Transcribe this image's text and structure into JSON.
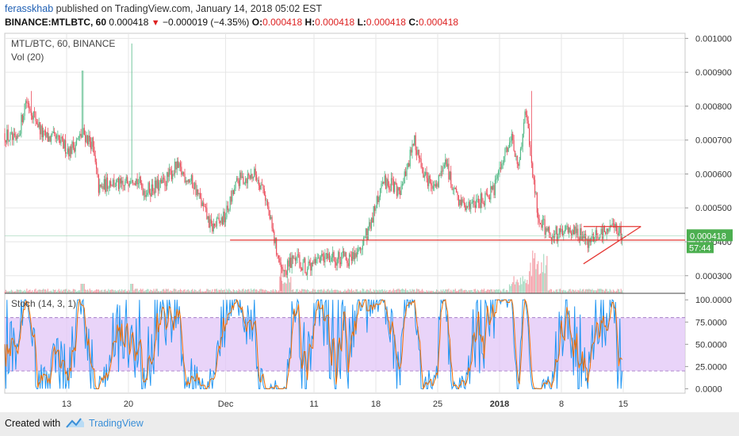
{
  "header": {
    "username": "ferasskhab",
    "published_text": "published on TradingView.com, January 14, 2018 05:02 EST",
    "symbol_line": "BINANCE:MTLBTC, 60",
    "last_price": "0.000418",
    "change_arrow": "▼",
    "change": "−0.000019 (−4.35%)",
    "o_label": "O:",
    "o_value": "0.000418",
    "h_label": "H:",
    "h_value": "0.000418",
    "l_label": "L:",
    "l_value": "0.000418",
    "c_label": "C:",
    "c_value": "0.000418"
  },
  "footer": {
    "created_with": "Created with",
    "brand": "TradingView",
    "logo_icon": "tradingview-cloud-icon"
  },
  "colors": {
    "up": "#53b987",
    "down": "#eb4d5c",
    "trendline": "#e53935",
    "stoch_k": "#2196f3",
    "stoch_d": "#ef6c00",
    "stoch_band": "#e1c6f7",
    "grid": "#e6e6e6"
  },
  "chart_data": {
    "type": "candlestick",
    "title": "MTL/BTC, 60, BINANCE",
    "volume_label": "Vol (20)",
    "y_ticks": [
      "0.001000",
      "0.000900",
      "0.000800",
      "0.000700",
      "0.000600",
      "0.000500",
      "0.000400",
      "0.000300"
    ],
    "ylim": [
      0.000248,
      0.001015
    ],
    "last_price_label": "0.000418",
    "countdown_label": "57:44",
    "x_ticks": [
      "13",
      "20",
      "Dec",
      "11",
      "18",
      "25",
      "2018",
      "8",
      "15"
    ],
    "x_tick_days": [
      13,
      20,
      31,
      41,
      48,
      55,
      62,
      69,
      76
    ],
    "xlim_days": [
      6,
      83
    ],
    "price_path": [
      {
        "day": 6.0,
        "price": 0.00072
      },
      {
        "day": 7.5,
        "price": 0.00069
      },
      {
        "day": 8.5,
        "price": 0.00082
      },
      {
        "day": 9.5,
        "price": 0.00077
      },
      {
        "day": 10.5,
        "price": 0.00071
      },
      {
        "day": 12.0,
        "price": 0.0007
      },
      {
        "day": 13.5,
        "price": 0.00067
      },
      {
        "day": 15.0,
        "price": 0.00072
      },
      {
        "day": 16.0,
        "price": 0.00069
      },
      {
        "day": 16.8,
        "price": 0.00055
      },
      {
        "day": 18.0,
        "price": 0.00058
      },
      {
        "day": 19.5,
        "price": 0.00056
      },
      {
        "day": 20.5,
        "price": 0.0006
      },
      {
        "day": 22.0,
        "price": 0.00055
      },
      {
        "day": 24.0,
        "price": 0.00057
      },
      {
        "day": 25.5,
        "price": 0.00062
      },
      {
        "day": 27.5,
        "price": 0.00057
      },
      {
        "day": 29.5,
        "price": 0.00044
      },
      {
        "day": 31.0,
        "price": 0.00047
      },
      {
        "day": 32.5,
        "price": 0.00058
      },
      {
        "day": 34.5,
        "price": 0.0006
      },
      {
        "day": 35.5,
        "price": 0.00055
      },
      {
        "day": 36.5,
        "price": 0.00042
      },
      {
        "day": 37.5,
        "price": 0.00031
      },
      {
        "day": 39.0,
        "price": 0.00035
      },
      {
        "day": 40.5,
        "price": 0.00032
      },
      {
        "day": 42.5,
        "price": 0.00035
      },
      {
        "day": 45.0,
        "price": 0.00035
      },
      {
        "day": 46.5,
        "price": 0.00038
      },
      {
        "day": 47.8,
        "price": 0.00048
      },
      {
        "day": 49.0,
        "price": 0.00058
      },
      {
        "day": 51.0,
        "price": 0.00055
      },
      {
        "day": 52.5,
        "price": 0.0007
      },
      {
        "day": 53.5,
        "price": 0.00059
      },
      {
        "day": 55.0,
        "price": 0.00056
      },
      {
        "day": 56.0,
        "price": 0.00064
      },
      {
        "day": 57.0,
        "price": 0.00054
      },
      {
        "day": 58.5,
        "price": 0.0005
      },
      {
        "day": 60.0,
        "price": 0.00052
      },
      {
        "day": 61.5,
        "price": 0.00055
      },
      {
        "day": 62.5,
        "price": 0.00064
      },
      {
        "day": 63.5,
        "price": 0.00071
      },
      {
        "day": 64.3,
        "price": 0.0006
      },
      {
        "day": 65.0,
        "price": 0.0008
      },
      {
        "day": 65.8,
        "price": 0.00062
      },
      {
        "day": 66.5,
        "price": 0.00047
      },
      {
        "day": 67.5,
        "price": 0.00043
      },
      {
        "day": 69.0,
        "price": 0.00042
      },
      {
        "day": 70.5,
        "price": 0.00044
      },
      {
        "day": 72.0,
        "price": 0.0004
      },
      {
        "day": 73.5,
        "price": 0.00042
      },
      {
        "day": 75.0,
        "price": 0.00045
      },
      {
        "day": 76.0,
        "price": 0.000418
      }
    ],
    "spikes": [
      {
        "day": 9.0,
        "high": 0.000845
      },
      {
        "day": 14.8,
        "high": 0.000905
      },
      {
        "day": 20.4,
        "high": 0.000985
      },
      {
        "day": 37.3,
        "low": 0.000255
      },
      {
        "day": 65.6,
        "high": 0.000845
      }
    ],
    "horizontal_line": {
      "price": 0.000405,
      "from_day": 31.5,
      "to_day": 83.0
    },
    "triangle": [
      {
        "from_day": 71.5,
        "from_price": 0.000445,
        "to_day": 78.0,
        "to_price": 0.000445
      },
      {
        "from_day": 71.5,
        "from_price": 0.000335,
        "to_day": 78.0,
        "to_price": 0.000445
      }
    ],
    "stoch": {
      "label": "Stoch (14, 3, 1)",
      "y_ticks": [
        "100.0000",
        "75.0000",
        "50.0000",
        "25.0000",
        "0.0000"
      ],
      "y_tick_values": [
        100,
        75,
        50,
        25,
        0
      ],
      "band": [
        20,
        80
      ],
      "ylim": [
        -5,
        102
      ]
    }
  }
}
